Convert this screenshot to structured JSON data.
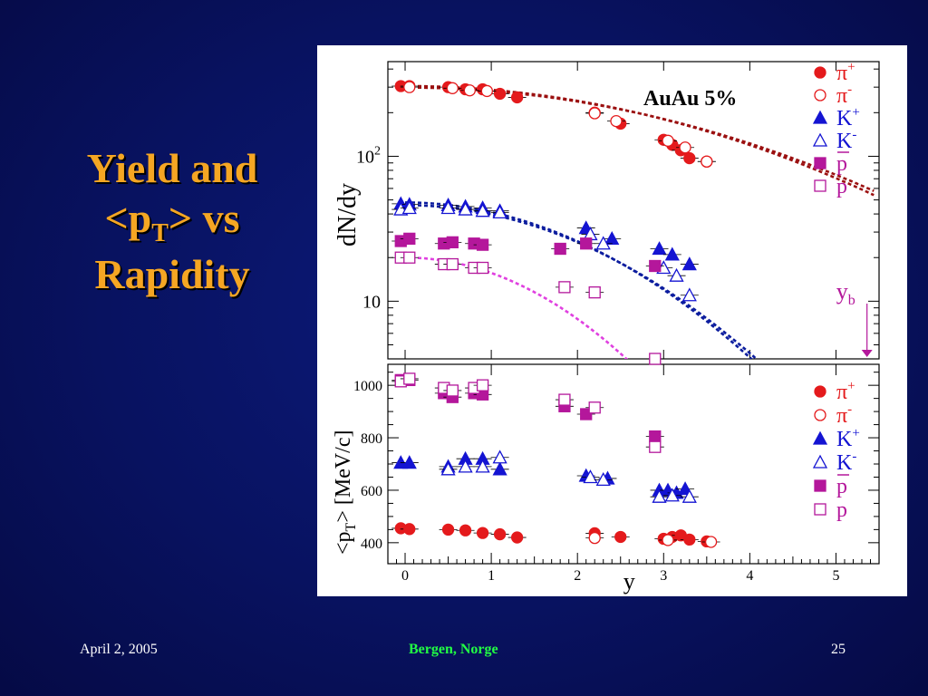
{
  "slide": {
    "title_line1": "Yield and",
    "title_pt": "<p",
    "title_pt_sub": "T",
    "title_pt_end": "> vs",
    "title_line3": "Rapidity"
  },
  "footer": {
    "date": "April 2, 2005",
    "location": "Bergen, Norge",
    "page": "25"
  },
  "colors": {
    "pion": "#e41a1c",
    "kaon": "#1414d2",
    "proton": "#b4179b",
    "pion_fit": "#9b1010",
    "kaon_fit": "#0b1c9e",
    "proton_fit": "#e040e0"
  },
  "chart_data": [
    {
      "type": "scatter",
      "annotation": "AuAu 5%",
      "ylabel": "dN/dy",
      "yscale": "log",
      "ylim": [
        4,
        450
      ],
      "xlim": [
        -0.2,
        5.5
      ],
      "yticks": [
        {
          "value": 100,
          "base": "10",
          "exp": "2"
        },
        {
          "value": 10,
          "base": "10",
          "exp": ""
        }
      ],
      "beam_rapidity_label": {
        "text": "y",
        "sub": "b",
        "x": 5.36
      },
      "legend": [
        {
          "base": "π",
          "sup": "+",
          "marker": "circle",
          "filled": true,
          "color": "pion"
        },
        {
          "base": "π",
          "sup": "-",
          "marker": "circle",
          "filled": false,
          "color": "pion"
        },
        {
          "base": "K",
          "sup": "+",
          "marker": "triangle",
          "filled": true,
          "color": "kaon"
        },
        {
          "base": "K",
          "sup": "-",
          "marker": "triangle",
          "filled": false,
          "color": "kaon"
        },
        {
          "base": "p",
          "sup": "",
          "bar": true,
          "marker": "square",
          "filled": true,
          "color": "proton"
        },
        {
          "base": "p",
          "sup": "",
          "bar": false,
          "marker": "square",
          "filled": false,
          "color": "proton"
        }
      ],
      "fits": [
        {
          "series": "pion",
          "A": 305,
          "w": 0.0585,
          "x_end": 5.45
        },
        {
          "series": "pion",
          "A": 298,
          "w": 0.0555,
          "x_end": 5.45
        },
        {
          "series": "kaon",
          "A": 48,
          "w": 0.154,
          "x_end": 4.6
        },
        {
          "series": "kaon",
          "A": 46,
          "w": 0.147,
          "x_end": 5.3
        },
        {
          "series": "proton",
          "A": 20,
          "w": 0.244,
          "x_end": 2.95
        }
      ],
      "series": [
        {
          "name": "π+",
          "color": "pion",
          "marker": "circle",
          "filled": true,
          "x": [
            -0.05,
            0.05,
            0.5,
            0.7,
            0.9,
            1.1,
            1.3,
            2.2,
            2.5,
            3.0,
            3.1,
            3.2,
            3.3,
            3.5
          ],
          "y": [
            305,
            305,
            300,
            290,
            290,
            270,
            255,
            200,
            168,
            130,
            120,
            110,
            97,
            92
          ]
        },
        {
          "name": "π-",
          "color": "pion",
          "marker": "circle",
          "filled": false,
          "x": [
            0.05,
            0.55,
            0.75,
            0.95,
            2.2,
            2.45,
            3.05,
            3.25,
            3.5
          ],
          "y": [
            300,
            295,
            285,
            282,
            198,
            175,
            128,
            115,
            92
          ]
        },
        {
          "name": "K+",
          "color": "kaon",
          "marker": "triangle",
          "filled": true,
          "x": [
            -0.05,
            0.05,
            0.5,
            0.7,
            0.9,
            1.1,
            2.1,
            2.4,
            2.95,
            3.1,
            3.3
          ],
          "y": [
            47,
            46.5,
            46,
            45,
            44,
            42,
            32,
            27,
            23,
            21,
            18
          ]
        },
        {
          "name": "K-",
          "color": "kaon",
          "marker": "triangle",
          "filled": false,
          "x": [
            -0.05,
            0.05,
            0.5,
            0.7,
            0.9,
            1.1,
            2.15,
            2.3,
            3.0,
            3.15,
            3.3
          ],
          "y": [
            43,
            44,
            44,
            43,
            42,
            41,
            29,
            25,
            17,
            15,
            11
          ]
        },
        {
          "name": "p",
          "color": "proton",
          "marker": "square",
          "filled": true,
          "x": [
            -0.05,
            0.05,
            0.45,
            0.55,
            0.8,
            0.9,
            1.8,
            2.1,
            2.9
          ],
          "y": [
            26,
            27,
            25,
            25.5,
            25,
            24.5,
            23,
            25,
            17.5
          ]
        },
        {
          "name": "pbar",
          "color": "proton",
          "marker": "square",
          "filled": false,
          "x": [
            -0.05,
            0.05,
            0.45,
            0.55,
            0.8,
            0.9,
            1.85,
            2.2,
            2.9
          ],
          "y": [
            20,
            20,
            18,
            18,
            17,
            17,
            12.5,
            11.5,
            4
          ]
        }
      ]
    },
    {
      "type": "scatter",
      "ylabel_pre": "<p",
      "ylabel_sub": "T",
      "ylabel_post": "> [MeV/c]",
      "xlabel": "y",
      "ylim": [
        320,
        1080
      ],
      "xlim": [
        -0.2,
        5.5
      ],
      "yticks": [
        400,
        600,
        800,
        1000
      ],
      "xticks": [
        0,
        1,
        2,
        3,
        4,
        5
      ],
      "legend": [
        {
          "base": "π",
          "sup": "+",
          "marker": "circle",
          "filled": true,
          "color": "pion"
        },
        {
          "base": "π",
          "sup": "-",
          "marker": "circle",
          "filled": false,
          "color": "pion"
        },
        {
          "base": "K",
          "sup": "+",
          "marker": "triangle",
          "filled": true,
          "color": "kaon"
        },
        {
          "base": "K",
          "sup": "-",
          "marker": "triangle",
          "filled": false,
          "color": "kaon"
        },
        {
          "base": "p",
          "sup": "",
          "bar": true,
          "marker": "square",
          "filled": true,
          "color": "proton"
        },
        {
          "base": "p",
          "sup": "",
          "bar": false,
          "marker": "square",
          "filled": false,
          "color": "proton"
        }
      ],
      "series": [
        {
          "name": "π+",
          "color": "pion",
          "marker": "circle",
          "filled": true,
          "x": [
            -0.05,
            0.05,
            0.5,
            0.7,
            0.9,
            1.1,
            1.3,
            2.2,
            2.5,
            3.0,
            3.1,
            3.2,
            3.3,
            3.5
          ],
          "y": [
            455,
            452,
            450,
            447,
            437,
            432,
            420,
            436,
            422,
            415,
            422,
            428,
            412,
            405
          ]
        },
        {
          "name": "π-",
          "color": "pion",
          "marker": "circle",
          "filled": false,
          "x": [
            2.2,
            3.05,
            3.55
          ],
          "y": [
            418,
            410,
            403
          ]
        },
        {
          "name": "K+",
          "color": "kaon",
          "marker": "triangle",
          "filled": true,
          "x": [
            -0.05,
            0.05,
            0.5,
            0.7,
            0.9,
            1.1,
            2.1,
            2.35,
            2.95,
            3.05,
            3.15,
            3.25
          ],
          "y": [
            705,
            705,
            690,
            720,
            720,
            680,
            655,
            645,
            600,
            600,
            590,
            605
          ]
        },
        {
          "name": "K-",
          "color": "kaon",
          "marker": "triangle",
          "filled": false,
          "x": [
            0.5,
            0.7,
            0.9,
            1.1,
            2.15,
            2.3,
            2.95,
            3.1,
            3.3
          ],
          "y": [
            680,
            690,
            690,
            725,
            650,
            640,
            575,
            580,
            575
          ]
        },
        {
          "name": "p",
          "color": "proton",
          "marker": "square",
          "filled": true,
          "x": [
            -0.05,
            0.05,
            0.45,
            0.55,
            0.8,
            0.9,
            1.85,
            2.1,
            2.9
          ],
          "y": [
            1020,
            1020,
            970,
            955,
            970,
            965,
            920,
            890,
            805
          ]
        },
        {
          "name": "pbar",
          "color": "proton",
          "marker": "square",
          "filled": false,
          "x": [
            -0.05,
            0.05,
            0.45,
            0.55,
            0.8,
            0.9,
            1.85,
            2.2,
            2.9
          ],
          "y": [
            1015,
            1025,
            990,
            980,
            990,
            1000,
            945,
            915,
            765
          ]
        }
      ]
    }
  ]
}
